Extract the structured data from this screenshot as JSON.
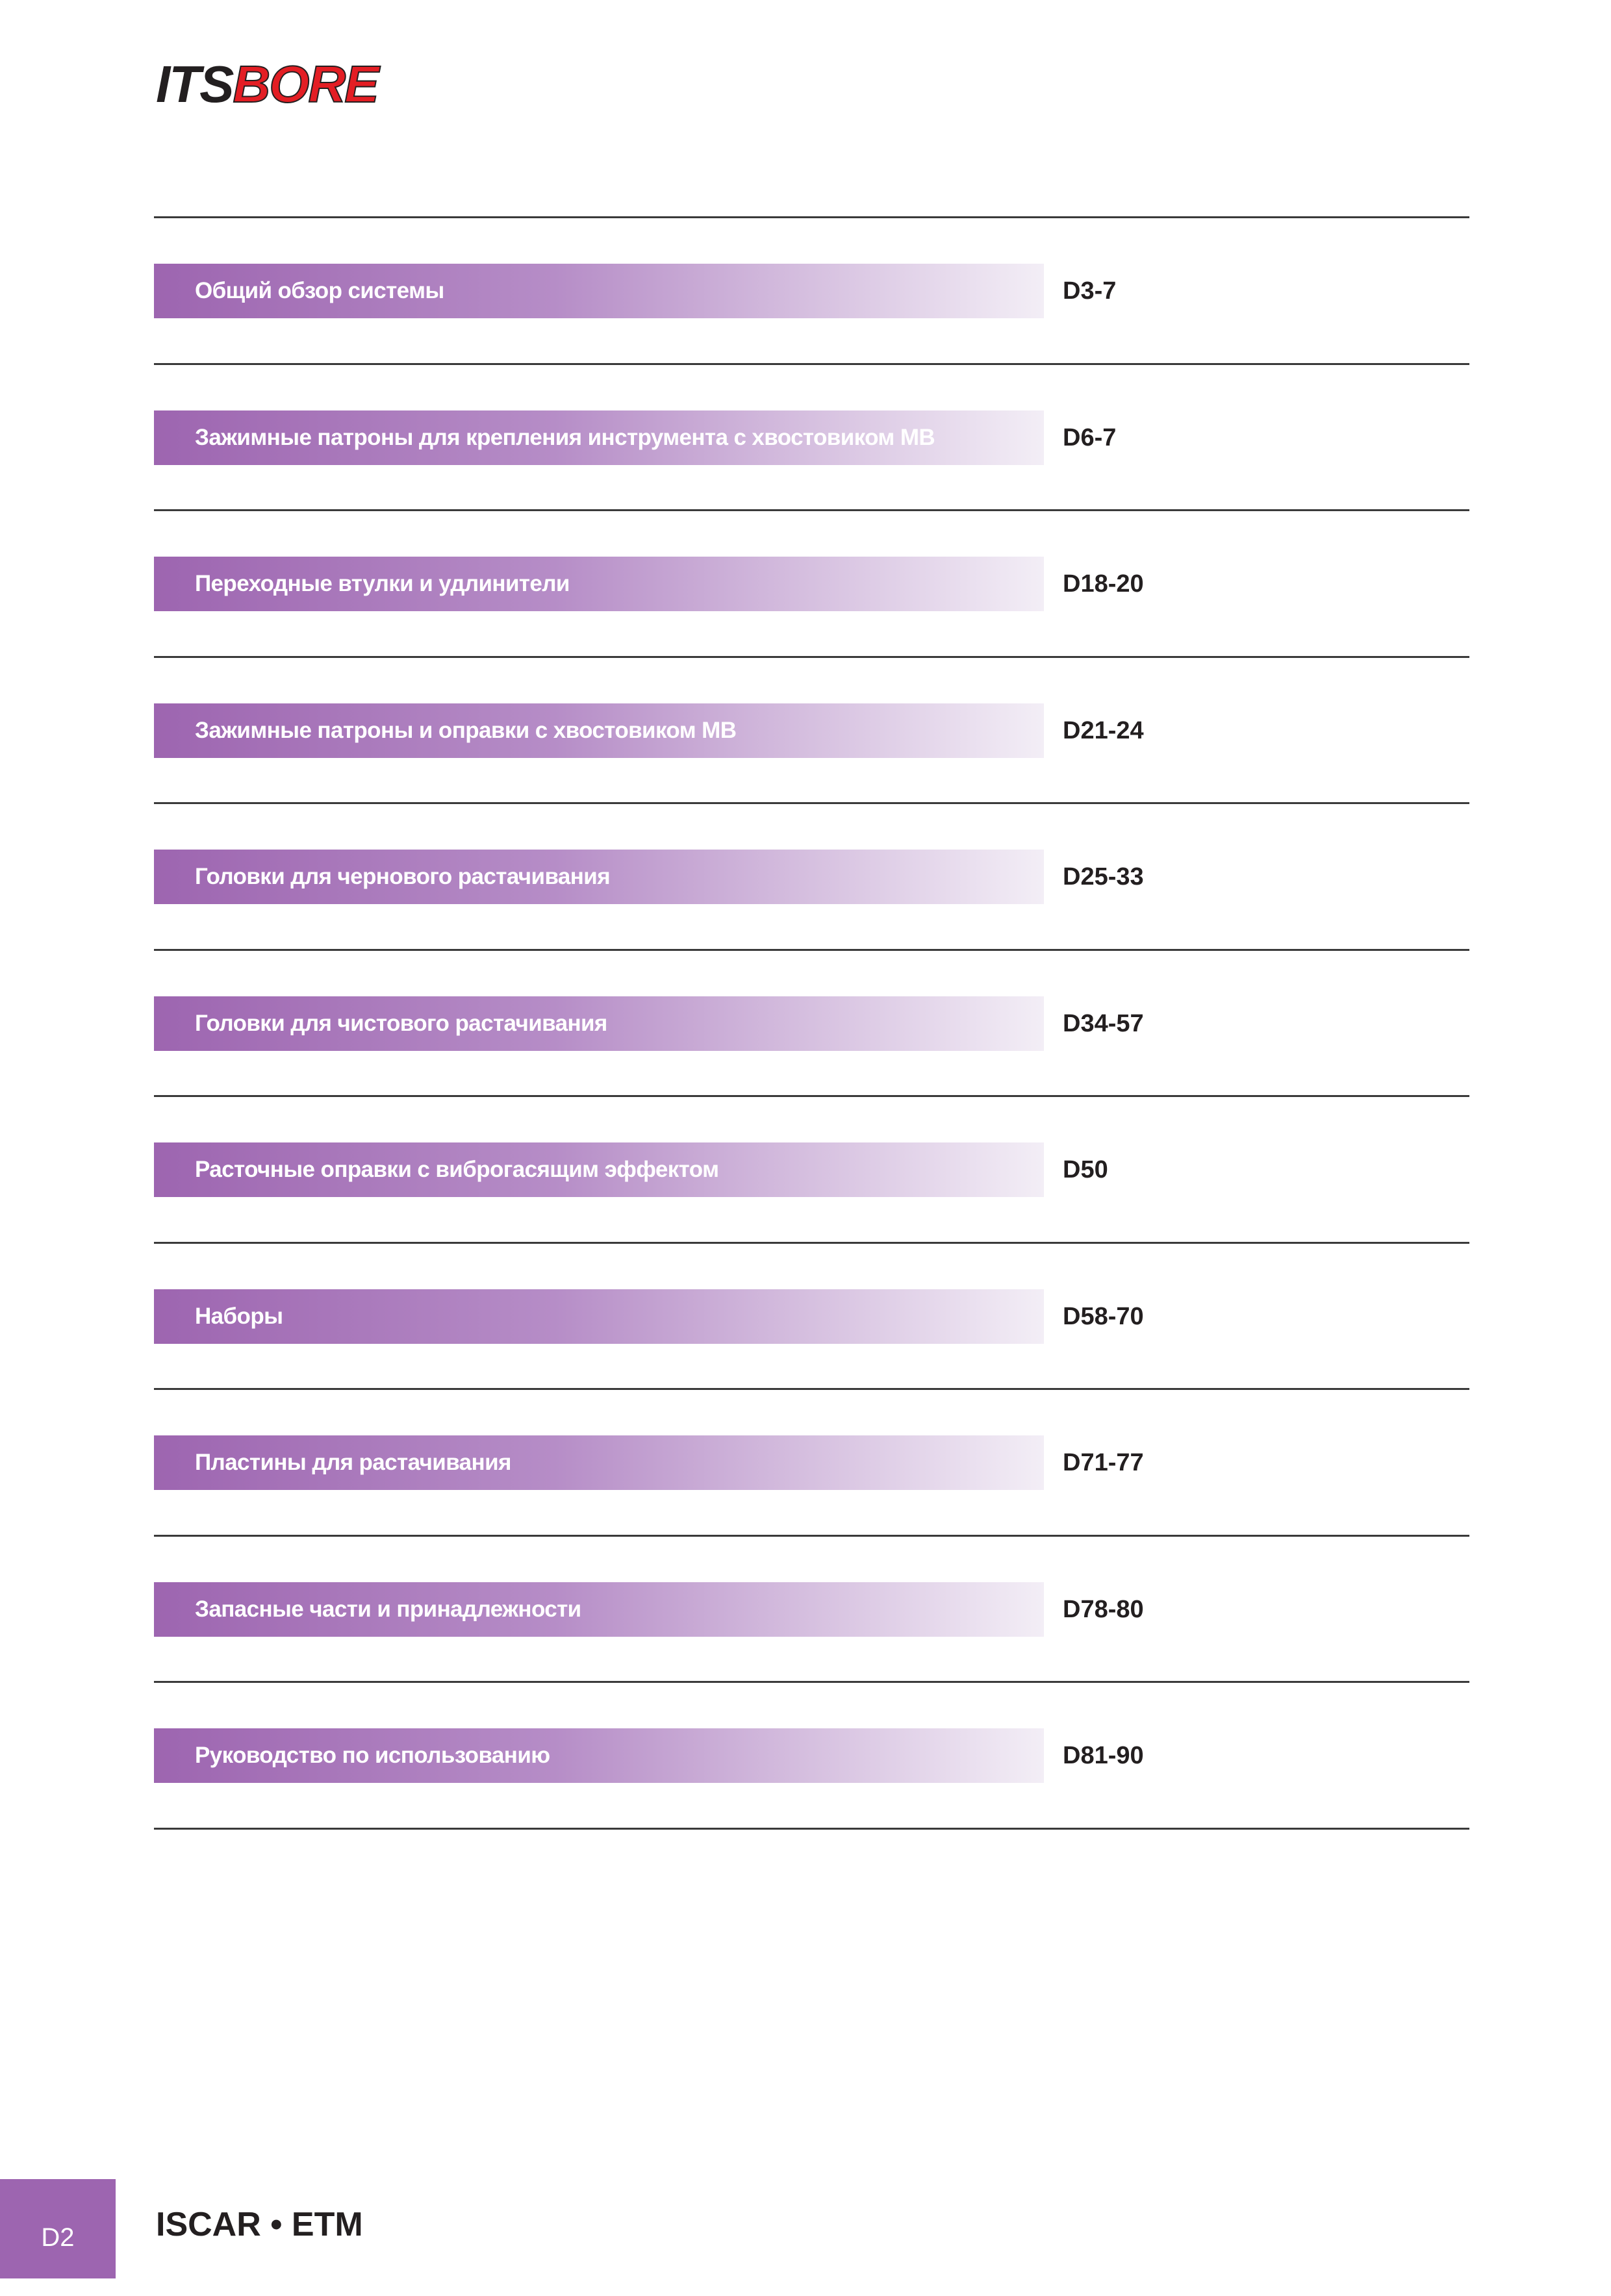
{
  "header": {
    "logo": {
      "part1": "ITS",
      "part2": "BORE"
    }
  },
  "toc": {
    "items": [
      {
        "title": "Общий обзор системы",
        "pages": "D3-7"
      },
      {
        "title": "Зажимные патроны для крепления инструмента с хвостовиком MB",
        "pages": "D6-7"
      },
      {
        "title": "Переходные втулки и удлинители",
        "pages": "D18-20"
      },
      {
        "title": "Зажимные патроны и оправки с хвостовиком MB",
        "pages": "D21-24"
      },
      {
        "title": "Головки для чернового растачивания",
        "pages": "D25-33"
      },
      {
        "title": "Головки для чистового растачивания",
        "pages": "D34-57"
      },
      {
        "title": "Расточные оправки с виброгасящим эффектом",
        "pages": "D50"
      },
      {
        "title": "Наборы",
        "pages": "D58-70"
      },
      {
        "title": "Пластины для растачивания",
        "pages": "D71-77"
      },
      {
        "title": "Запасные части и принадлежности",
        "pages": "D78-80"
      },
      {
        "title": "Руководство по использованию",
        "pages": "D81-90"
      }
    ]
  },
  "footer": {
    "page": "D2",
    "brand": "ISCAR • ETM"
  }
}
